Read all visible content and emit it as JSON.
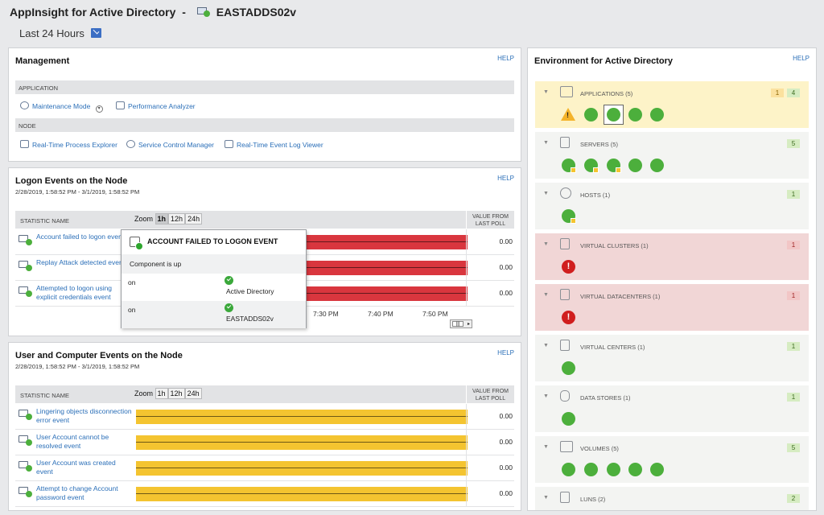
{
  "header": {
    "app_title": "AppInsight for Active Directory",
    "separator": "-",
    "node_name": "EASTADDS02v",
    "timespan": "Last 24 Hours"
  },
  "management": {
    "title": "Management",
    "help": "HELP",
    "application_section": "APPLICATION",
    "node_section": "NODE",
    "application_links": [
      "Maintenance Mode",
      "Performance Analyzer"
    ],
    "node_links": [
      "Real-Time Process Explorer",
      "Service Control Manager",
      "Real-Time Event Log Viewer"
    ]
  },
  "logon": {
    "title": "Logon Events on the Node",
    "help": "HELP",
    "daterange": "2/28/2019, 1:58:52 PM - 3/1/2019, 1:58:52 PM",
    "col_stat": "STATISTIC NAME",
    "zoom_label": "Zoom",
    "zoom_options": [
      "1h",
      "12h",
      "24h"
    ],
    "col_value_1": "VALUE FROM",
    "col_value_2": "LAST POLL",
    "rows": [
      {
        "label": "Account failed to logon event",
        "value": "0.00"
      },
      {
        "label": "Replay Attack detected event",
        "value": "0.00"
      },
      {
        "label": "Attempted to logon using explicit credentials event",
        "value": "0.00"
      }
    ],
    "axis_ticks": [
      "7:30 PM",
      "7:40 PM",
      "7:50 PM"
    ]
  },
  "popup": {
    "title": "ACCOUNT FAILED TO LOGON EVENT",
    "status": "Component is up",
    "rows": [
      {
        "label": "on",
        "value": "Active Directory"
      },
      {
        "label": "on",
        "value": "EASTADDS02v"
      }
    ]
  },
  "usercomp": {
    "title": "User and Computer Events on the Node",
    "help": "HELP",
    "daterange": "2/28/2019, 1:58:52 PM - 3/1/2019, 1:58:52 PM",
    "col_stat": "STATISTIC NAME",
    "zoom_label": "Zoom",
    "zoom_options": [
      "1h",
      "12h",
      "24h"
    ],
    "col_value_1": "VALUE FROM",
    "col_value_2": "LAST POLL",
    "rows": [
      {
        "label": "Lingering objects disconnection error event",
        "value": "0.00"
      },
      {
        "label": "User Account cannot be resolved event",
        "value": "0.00"
      },
      {
        "label": "User Account was created event",
        "value": "0.00"
      },
      {
        "label": "Attempt to change Account password event",
        "value": "0.00"
      }
    ]
  },
  "environment": {
    "title": "Environment for Active Directory",
    "help": "HELP",
    "sections": [
      {
        "label": "APPLICATIONS (5)",
        "counts": [
          {
            "v": "1",
            "c": "yellow"
          },
          {
            "v": "4",
            "c": "green"
          }
        ],
        "bg": "#fdf3c8"
      },
      {
        "label": "SERVERS (5)",
        "counts": [
          {
            "v": "5",
            "c": "green"
          }
        ],
        "bg": "#f3f4f2"
      },
      {
        "label": "HOSTS (1)",
        "counts": [
          {
            "v": "1",
            "c": "green"
          }
        ],
        "bg": "#f3f4f2"
      },
      {
        "label": "VIRTUAL CLUSTERS (1)",
        "counts": [
          {
            "v": "1",
            "c": "red"
          }
        ],
        "bg": "#f1d6d6"
      },
      {
        "label": "VIRTUAL DATACENTERS (1)",
        "counts": [
          {
            "v": "1",
            "c": "red"
          }
        ],
        "bg": "#f1d6d6"
      },
      {
        "label": "VIRTUAL CENTERS (1)",
        "counts": [
          {
            "v": "1",
            "c": "green"
          }
        ],
        "bg": "#f3f4f2"
      },
      {
        "label": "DATA STORES (1)",
        "counts": [
          {
            "v": "1",
            "c": "green"
          }
        ],
        "bg": "#f3f4f2"
      },
      {
        "label": "VOLUMES (5)",
        "counts": [
          {
            "v": "5",
            "c": "green"
          }
        ],
        "bg": "#f3f4f2"
      },
      {
        "label": "LUNS (2)",
        "counts": [
          {
            "v": "2",
            "c": "green"
          }
        ],
        "bg": "#f3f4f2"
      }
    ]
  }
}
